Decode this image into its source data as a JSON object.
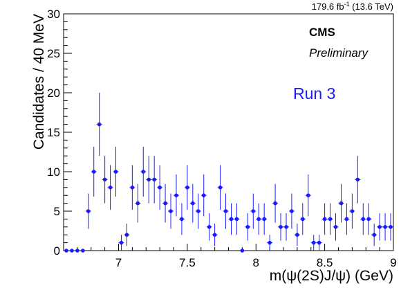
{
  "chart_data": {
    "type": "scatter",
    "lumi_label": "179.6 fb",
    "lumi_sup": "-1",
    "lumi_energy": " (13.6 TeV)",
    "experiment": "CMS",
    "status": "Preliminary",
    "run_label": "Run 3",
    "xlabel": "m(ψ(2S)J/ψ) (GeV)",
    "ylabel": "Candidates / 40 MeV",
    "xlim": [
      6.6,
      9.0
    ],
    "ylim": [
      0,
      30
    ],
    "xticks": [
      7,
      7.5,
      8,
      8.5,
      9
    ],
    "xtick_labels": [
      "7",
      "7.5",
      "8",
      "8.5",
      "9"
    ],
    "yticks": [
      0,
      5,
      10,
      15,
      20,
      25,
      30
    ],
    "ytick_labels": [
      "0",
      "5",
      "10",
      "15",
      "20",
      "25",
      "30"
    ],
    "bin_width": 0.04,
    "marker_color": "#1a1aff",
    "series": [
      {
        "x": [
          6.62,
          6.66,
          6.7,
          6.74,
          6.78,
          6.82,
          6.86,
          6.9,
          6.94,
          6.98,
          7.02,
          7.06,
          7.1,
          7.14,
          7.18,
          7.22,
          7.26,
          7.3,
          7.34,
          7.38,
          7.42,
          7.46,
          7.5,
          7.54,
          7.58,
          7.62,
          7.66,
          7.7,
          7.74,
          7.78,
          7.82,
          7.86,
          7.9,
          7.94,
          7.98,
          8.02,
          8.06,
          8.1,
          8.14,
          8.18,
          8.22,
          8.26,
          8.3,
          8.34,
          8.38,
          8.42,
          8.46,
          8.5,
          8.54,
          8.58,
          8.62,
          8.66,
          8.7,
          8.74,
          8.78,
          8.82,
          8.86,
          8.9,
          8.94,
          8.98
        ],
        "y": [
          0,
          0,
          0,
          0,
          5,
          10,
          16,
          9,
          8,
          10,
          1,
          2,
          8,
          6,
          10,
          9,
          9,
          8,
          6,
          5,
          7,
          4,
          8,
          6,
          5,
          7,
          3,
          2,
          8,
          5,
          4,
          4,
          0,
          3,
          5,
          4,
          4,
          1,
          6,
          3,
          3,
          5,
          2,
          4,
          7,
          1,
          1,
          4,
          4,
          3,
          6,
          4,
          5,
          9,
          4,
          4,
          2,
          3,
          3,
          3
        ]
      }
    ]
  }
}
